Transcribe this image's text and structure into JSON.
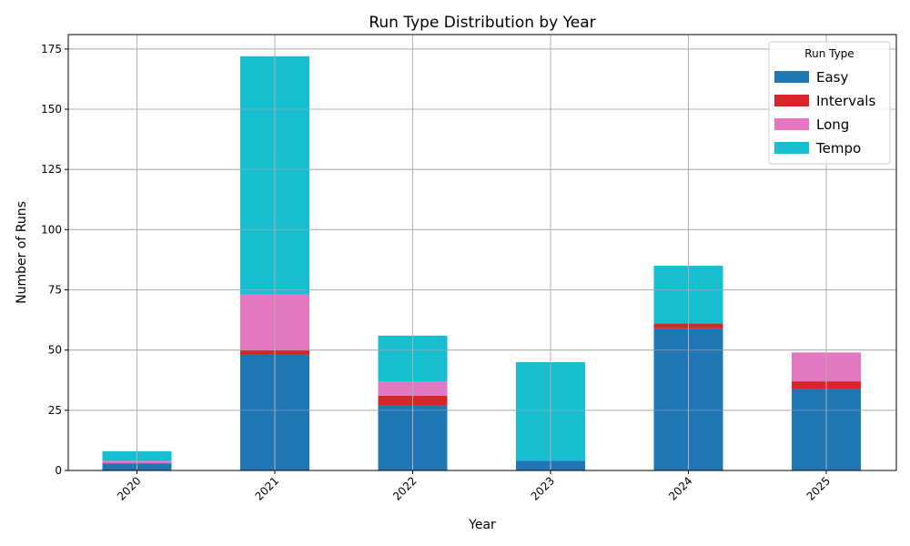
{
  "chart_data": {
    "type": "bar",
    "stacked": true,
    "title": "Run Type Distribution by Year",
    "xlabel": "Year",
    "ylabel": "Number of Runs",
    "categories": [
      "2020",
      "2021",
      "2022",
      "2023",
      "2024",
      "2025"
    ],
    "ylim": [
      0,
      181
    ],
    "yticks": [
      0,
      25,
      50,
      75,
      100,
      125,
      150,
      175
    ],
    "grid": true,
    "legend": {
      "title": "Run Type",
      "placement": "top-right"
    },
    "series": [
      {
        "name": "Easy",
        "color": "#1f77b4",
        "values": [
          3,
          48,
          27,
          4,
          59,
          34
        ]
      },
      {
        "name": "Intervals",
        "color": "#d62728",
        "values": [
          0,
          2,
          4,
          0,
          2,
          3
        ]
      },
      {
        "name": "Long",
        "color": "#e377c2",
        "values": [
          1,
          23,
          6,
          0,
          0,
          12
        ]
      },
      {
        "name": "Tempo",
        "color": "#17becf",
        "values": [
          4,
          99,
          19,
          41,
          24,
          0
        ]
      }
    ]
  }
}
